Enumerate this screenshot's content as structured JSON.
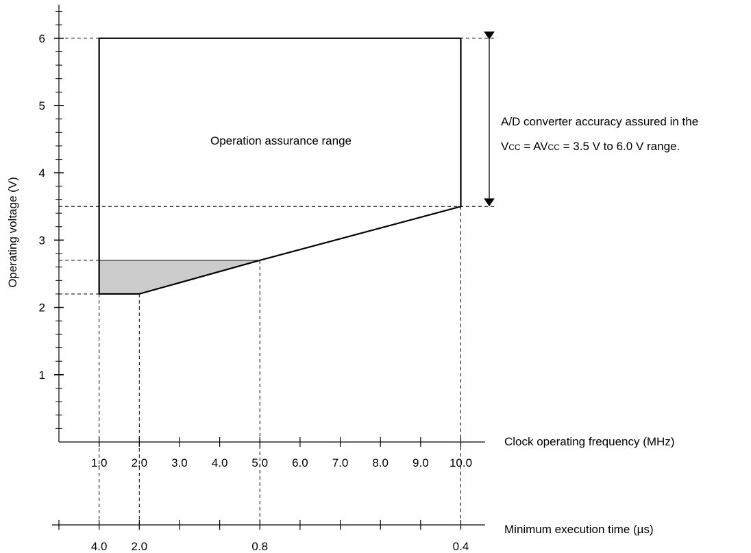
{
  "chart_data": {
    "type": "area",
    "ylabel": "Operating voltage (V)",
    "xlabel": "Clock operating frequency (MHz)",
    "x2label": "Minimum execution time (µs)",
    "xlim": [
      0,
      10.5
    ],
    "ylim": [
      -0.05,
      6.5
    ],
    "y_ticks": [
      "1",
      "2",
      "3",
      "4",
      "5",
      "6"
    ],
    "x_ticks": [
      "1.0",
      "2.0",
      "3.0",
      "4.0",
      "5.0",
      "6.0",
      "7.0",
      "8.0",
      "9.0",
      "10.0"
    ],
    "x2_ticks": [
      {
        "x": 1.0,
        "label": "4.0"
      },
      {
        "x": 2.0,
        "label": "2.0"
      },
      {
        "x": 5.0,
        "label": "0.8"
      },
      {
        "x": 10.0,
        "label": "0.4"
      }
    ],
    "region_boundary": [
      [
        1.0,
        6.0
      ],
      [
        10.0,
        6.0
      ],
      [
        10.0,
        3.5
      ],
      [
        5.0,
        2.7
      ],
      [
        2.0,
        2.2
      ],
      [
        1.0,
        2.2
      ]
    ],
    "shaded_region": [
      [
        1.0,
        2.7
      ],
      [
        5.0,
        2.7
      ],
      [
        2.0,
        2.2
      ],
      [
        1.0,
        2.2
      ]
    ],
    "region_label": "Operation assurance range",
    "annotation": {
      "line1": "A/D converter accuracy assured in the",
      "line2_parts": [
        {
          "text": "V",
          "sub": false
        },
        {
          "text": "CC",
          "sub": true
        },
        {
          "text": " = AV",
          "sub": false
        },
        {
          "text": "CC",
          "sub": true
        },
        {
          "text": " = 3.5 V to 6.0 V range.",
          "sub": false
        }
      ],
      "range": [
        3.5,
        6.0
      ]
    },
    "colors": {
      "shade": "#cccccc",
      "line": "#000000"
    }
  }
}
